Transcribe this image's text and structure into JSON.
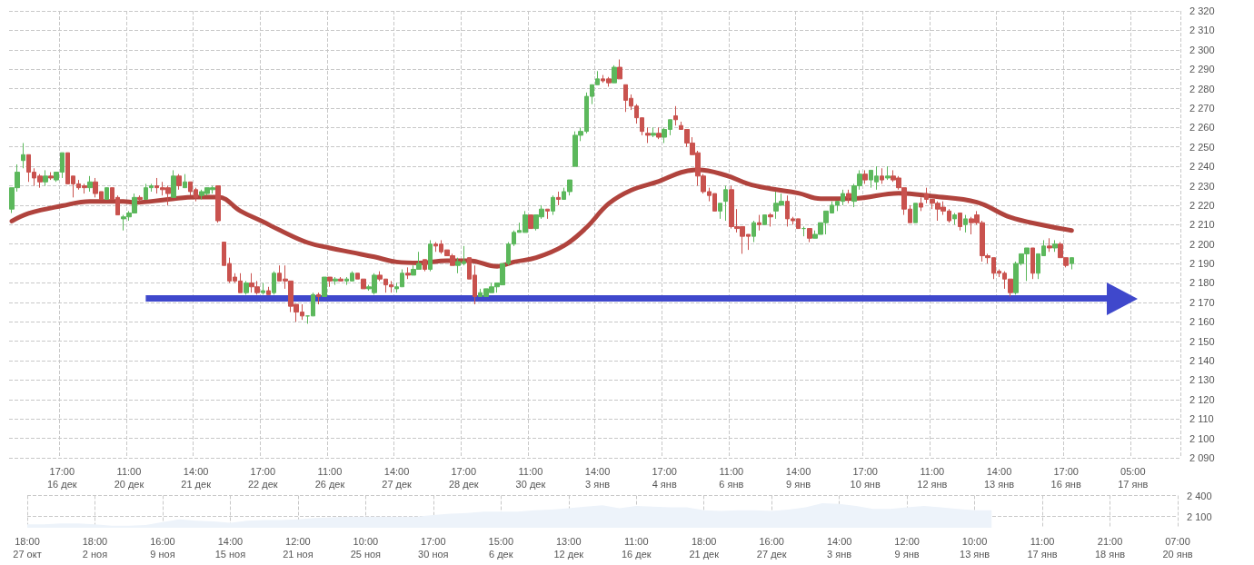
{
  "chart_data": [
    {
      "type": "candlestick",
      "categories": [
        null,
        null,
        null,
        null,
        null,
        null,
        null,
        null,
        null,
        "17:00\n16 дек",
        null,
        null,
        null,
        null,
        null,
        null,
        null,
        null,
        null,
        null,
        null,
        "11:00\n20 дек",
        null,
        null,
        null,
        null,
        null,
        null,
        null,
        null,
        null,
        null,
        null,
        "14:00\n21 дек",
        null,
        null,
        null,
        null,
        null,
        null,
        null,
        null,
        null,
        null,
        null,
        "17:00\n22 дек",
        null,
        null,
        null,
        null,
        null,
        null,
        null,
        null,
        null,
        null,
        null,
        "11:00\n26 дек",
        null,
        null,
        null,
        null,
        null,
        null,
        null,
        null,
        null,
        null,
        null,
        "14:00\n27 дек",
        null,
        null,
        null,
        null,
        null,
        null,
        null,
        null,
        null,
        null,
        null,
        "17:00\n28 дек",
        null,
        null,
        null,
        null,
        null,
        null,
        null,
        null,
        null,
        null,
        null,
        "11:00\n30 дек",
        null,
        null,
        null,
        null,
        null,
        null,
        null,
        null,
        null,
        null,
        null,
        "14:00\n3 янв",
        null,
        null,
        null,
        null,
        null,
        null,
        null,
        null,
        null,
        null,
        null,
        "17:00\n4 янв",
        null,
        null,
        null,
        null,
        null,
        null,
        null,
        null,
        null,
        null,
        null,
        "11:00\n6 янв",
        null,
        null,
        null,
        null,
        null,
        null,
        null,
        null,
        null,
        null,
        null,
        "14:00\n9 янв",
        null,
        null,
        null,
        null,
        null,
        null,
        null,
        null,
        null,
        null,
        null,
        "17:00\n10 янв",
        null,
        null,
        null,
        null,
        null,
        null,
        null,
        null,
        null,
        null,
        null,
        "11:00\n12 янв",
        null,
        null,
        null,
        null,
        null,
        null,
        null,
        null,
        null,
        null,
        null,
        "14:00\n13 янв",
        null,
        null,
        null,
        null,
        null,
        null,
        null,
        null,
        null,
        null,
        null,
        "17:00\n16 янв",
        null,
        null,
        null,
        null,
        null,
        null,
        null,
        null,
        null,
        null,
        null,
        "05:00\n17 янв",
        null,
        null,
        null,
        null,
        null,
        null,
        null,
        null
      ],
      "ohlc": [
        [
          2218,
          2229,
          2216,
          2229
        ],
        [
          2229,
          2241,
          2227,
          2237
        ],
        [
          2243,
          2252,
          2239,
          2246
        ],
        [
          2246,
          2246,
          2232,
          2237
        ],
        [
          2237,
          2239,
          2230,
          2234
        ],
        [
          2235,
          2236,
          2229,
          2232
        ],
        [
          2232,
          2238,
          2230,
          2235
        ],
        [
          2235,
          2237,
          2233,
          2234
        ],
        [
          2233,
          2237,
          2232,
          2237
        ],
        [
          2237,
          2247,
          2234,
          2247
        ],
        [
          2247,
          2247,
          2231,
          2231
        ],
        [
          2235,
          2235,
          2224,
          2231
        ],
        [
          2231,
          2233,
          2228,
          2229
        ],
        [
          2230,
          2231,
          2226,
          2229
        ],
        [
          2229,
          2235,
          2227,
          2232
        ],
        [
          2232,
          2234,
          2224,
          2226
        ],
        [
          2227,
          2227,
          2223,
          2223
        ],
        [
          2223,
          2229,
          2223,
          2229
        ],
        [
          2229,
          2229,
          2223,
          2223
        ],
        [
          2224,
          2225,
          2215,
          2215
        ],
        [
          2213,
          2215,
          2207,
          2214
        ],
        [
          2214,
          2217,
          2212,
          2216
        ],
        [
          2216,
          2226,
          2216,
          2224
        ],
        [
          2224,
          2225,
          2222,
          2223
        ],
        [
          2223,
          2231,
          2223,
          2229
        ],
        [
          2229,
          2231,
          2227,
          2230
        ],
        [
          2230,
          2234,
          2226,
          2229
        ],
        [
          2229,
          2232,
          2225,
          2228
        ],
        [
          2229,
          2230,
          2220,
          2226
        ],
        [
          2224,
          2238,
          2224,
          2235
        ],
        [
          2235,
          2236,
          2228,
          2230
        ],
        [
          2229,
          2236,
          2229,
          2232
        ],
        [
          2232,
          2232,
          2225,
          2227
        ],
        [
          2228,
          2229,
          2222,
          2224
        ],
        [
          2225,
          2228,
          2223,
          2227
        ],
        [
          2226,
          2229,
          2225,
          2229
        ],
        [
          2228,
          2230,
          2226,
          2229
        ],
        [
          2230,
          2230,
          2211,
          2212
        ],
        [
          2201,
          2201,
          2189,
          2189
        ],
        [
          2190,
          2193,
          2180,
          2181
        ],
        [
          2183,
          2185,
          2180,
          2181
        ],
        [
          2181,
          2185,
          2175,
          2175
        ],
        [
          2175,
          2181,
          2174,
          2180
        ],
        [
          2180,
          2185,
          2175,
          2178
        ],
        [
          2178,
          2181,
          2174,
          2175
        ],
        [
          2175,
          2180,
          2174,
          2176
        ],
        [
          2176,
          2178,
          2174,
          2174
        ],
        [
          2175,
          2186,
          2174,
          2185
        ],
        [
          2185,
          2189,
          2181,
          2181
        ],
        [
          2182,
          2189,
          2177,
          2181
        ],
        [
          2181,
          2181,
          2165,
          2168
        ],
        [
          2169,
          2169,
          2160,
          2165
        ],
        [
          2165,
          2169,
          2161,
          2163
        ],
        [
          2163,
          2163,
          2159,
          2163
        ],
        [
          2163,
          2175,
          2163,
          2174
        ],
        [
          2174,
          2175,
          2169,
          2173
        ],
        [
          2173,
          2183,
          2173,
          2183
        ],
        [
          2183,
          2183,
          2178,
          2181
        ],
        [
          2181,
          2183,
          2179,
          2182
        ],
        [
          2182,
          2183,
          2181,
          2181
        ],
        [
          2181,
          2183,
          2179,
          2182
        ],
        [
          2181,
          2186,
          2181,
          2185
        ],
        [
          2185,
          2185,
          2182,
          2182
        ],
        [
          2182,
          2182,
          2177,
          2177
        ],
        [
          2177,
          2179,
          2176,
          2178
        ],
        [
          2175,
          2185,
          2174,
          2184
        ],
        [
          2184,
          2186,
          2181,
          2182
        ],
        [
          2182,
          2182,
          2175,
          2179
        ],
        [
          2179,
          2181,
          2175,
          2178
        ],
        [
          2177,
          2180,
          2175,
          2178
        ],
        [
          2178,
          2187,
          2178,
          2185
        ],
        [
          2185,
          2188,
          2182,
          2184
        ],
        [
          2184,
          2189,
          2184,
          2187
        ],
        [
          2187,
          2196,
          2187,
          2190
        ],
        [
          2192,
          2192,
          2186,
          2187
        ],
        [
          2187,
          2202,
          2186,
          2200
        ],
        [
          2200,
          2201,
          2196,
          2199
        ],
        [
          2200,
          2202,
          2195,
          2196
        ],
        [
          2197,
          2197,
          2194,
          2194
        ],
        [
          2194,
          2195,
          2189,
          2189
        ],
        [
          2189,
          2193,
          2185,
          2191
        ],
        [
          2190,
          2199,
          2189,
          2191
        ],
        [
          2193,
          2193,
          2182,
          2182
        ],
        [
          2184,
          2189,
          2169,
          2173
        ],
        [
          2173,
          2177,
          2173,
          2175
        ],
        [
          2173,
          2177,
          2173,
          2177
        ],
        [
          2175,
          2180,
          2175,
          2178
        ],
        [
          2178,
          2180,
          2175,
          2180
        ],
        [
          2179,
          2190,
          2179,
          2190
        ],
        [
          2190,
          2201,
          2189,
          2200
        ],
        [
          2200,
          2207,
          2199,
          2206
        ],
        [
          2206,
          2211,
          2206,
          2207
        ],
        [
          2206,
          2217,
          2206,
          2215
        ],
        [
          2215,
          2215,
          2208,
          2208
        ],
        [
          2208,
          2215,
          2207,
          2215
        ],
        [
          2214,
          2220,
          2213,
          2218
        ],
        [
          2218,
          2218,
          2213,
          2217
        ],
        [
          2217,
          2225,
          2215,
          2224
        ],
        [
          2224,
          2227,
          2220,
          2223
        ],
        [
          2223,
          2229,
          2223,
          2227
        ],
        [
          2227,
          2233,
          2225,
          2233
        ],
        [
          2240,
          2258,
          2240,
          2256
        ],
        [
          2256,
          2260,
          2253,
          2258
        ],
        [
          2258,
          2278,
          2257,
          2276
        ],
        [
          2276,
          2282,
          2272,
          2282
        ],
        [
          2282,
          2289,
          2282,
          2285
        ],
        [
          2285,
          2287,
          2283,
          2284
        ],
        [
          2285,
          2286,
          2281,
          2283
        ],
        [
          2283,
          2292,
          2283,
          2291
        ],
        [
          2291,
          2295,
          2285,
          2285
        ],
        [
          2282,
          2282,
          2268,
          2274
        ],
        [
          2275,
          2277,
          2269,
          2271
        ],
        [
          2271,
          2272,
          2262,
          2265
        ],
        [
          2265,
          2265,
          2256,
          2258
        ],
        [
          2257,
          2260,
          2252,
          2256
        ],
        [
          2256,
          2260,
          2255,
          2257
        ],
        [
          2257,
          2260,
          2254,
          2255
        ],
        [
          2255,
          2260,
          2252,
          2259
        ],
        [
          2259,
          2264,
          2256,
          2264
        ],
        [
          2266,
          2271,
          2261,
          2264
        ],
        [
          2261,
          2263,
          2259,
          2259
        ],
        [
          2259,
          2259,
          2250,
          2252
        ],
        [
          2252,
          2255,
          2246,
          2246
        ],
        [
          2247,
          2248,
          2230,
          2235
        ],
        [
          2235,
          2236,
          2226,
          2227
        ],
        [
          2227,
          2229,
          2222,
          2225
        ],
        [
          2226,
          2226,
          2217,
          2217
        ],
        [
          2217,
          2221,
          2213,
          2221
        ],
        [
          2222,
          2230,
          2212,
          2228
        ],
        [
          2228,
          2230,
          2208,
          2209
        ],
        [
          2209,
          2218,
          2206,
          2208
        ],
        [
          2209,
          2209,
          2195,
          2204
        ],
        [
          2205,
          2205,
          2197,
          2204
        ],
        [
          2204,
          2212,
          2201,
          2211
        ],
        [
          2211,
          2215,
          2207,
          2210
        ],
        [
          2210,
          2215,
          2210,
          2215
        ],
        [
          2215,
          2216,
          2209,
          2214
        ],
        [
          2217,
          2227,
          2213,
          2221
        ],
        [
          2220,
          2226,
          2220,
          2222
        ],
        [
          2222,
          2225,
          2209,
          2213
        ],
        [
          2213,
          2214,
          2210,
          2212
        ],
        [
          2213,
          2213,
          2208,
          2208
        ],
        [
          2208,
          2209,
          2204,
          2208
        ],
        [
          2208,
          2208,
          2201,
          2203
        ],
        [
          2203,
          2207,
          2203,
          2205
        ],
        [
          2205,
          2211,
          2205,
          2211
        ],
        [
          2211,
          2217,
          2205,
          2217
        ],
        [
          2216,
          2222,
          2216,
          2220
        ],
        [
          2220,
          2222,
          2217,
          2222
        ],
        [
          2222,
          2228,
          2220,
          2226
        ],
        [
          2226,
          2228,
          2221,
          2224
        ],
        [
          2222,
          2231,
          2219,
          2230
        ],
        [
          2230,
          2238,
          2228,
          2236
        ],
        [
          2236,
          2238,
          2231,
          2233
        ],
        [
          2233,
          2238,
          2229,
          2238
        ],
        [
          2232,
          2240,
          2228,
          2235
        ],
        [
          2235,
          2239,
          2231,
          2233
        ],
        [
          2234,
          2240,
          2233,
          2235
        ],
        [
          2235,
          2238,
          2232,
          2233
        ],
        [
          2234,
          2235,
          2228,
          2229
        ],
        [
          2229,
          2229,
          2215,
          2218
        ],
        [
          2218,
          2220,
          2211,
          2211
        ],
        [
          2211,
          2221,
          2211,
          2221
        ],
        [
          2221,
          2224,
          2217,
          2219
        ],
        [
          2226,
          2229,
          2221,
          2223
        ],
        [
          2223,
          2223,
          2218,
          2221
        ],
        [
          2221,
          2222,
          2212,
          2218
        ],
        [
          2219,
          2222,
          2215,
          2217
        ],
        [
          2217,
          2218,
          2211,
          2212
        ],
        [
          2213,
          2216,
          2210,
          2215
        ],
        [
          2216,
          2216,
          2207,
          2209
        ],
        [
          2210,
          2215,
          2206,
          2213
        ],
        [
          2213,
          2214,
          2205,
          2211
        ],
        [
          2215,
          2217,
          2210,
          2211
        ],
        [
          2211,
          2212,
          2191,
          2194
        ],
        [
          2194,
          2195,
          2190,
          2193
        ],
        [
          2193,
          2193,
          2182,
          2185
        ],
        [
          2186,
          2187,
          2183,
          2185
        ],
        [
          2185,
          2186,
          2177,
          2182
        ],
        [
          2182,
          2182,
          2173,
          2175
        ],
        [
          2175,
          2191,
          2174,
          2190
        ],
        [
          2190,
          2195,
          2189,
          2195
        ],
        [
          2195,
          2198,
          2181,
          2198
        ],
        [
          2198,
          2198,
          2182,
          2185
        ],
        [
          2185,
          2195,
          2182,
          2195
        ],
        [
          2194,
          2202,
          2194,
          2199
        ],
        [
          2199,
          2203,
          2196,
          2198
        ],
        [
          2198,
          2202,
          2196,
          2200
        ],
        [
          2200,
          2201,
          2193,
          2193
        ],
        [
          2193,
          2193,
          2188,
          2189
        ],
        [
          2190,
          2193,
          2187,
          2193
        ],
        null,
        null,
        null,
        null,
        null,
        null,
        null,
        null,
        null,
        null,
        null,
        null,
        null,
        null,
        null,
        null,
        null,
        null,
        null
      ],
      "series": [
        {
          "type": "line",
          "color": "#b0433d",
          "values": [
            2211.8,
            null,
            null,
            2215.8,
            null,
            null,
            null,
            null,
            null,
            2219.7,
            null,
            null,
            null,
            null,
            2222,
            null,
            null,
            null,
            null,
            null,
            2222,
            null,
            2221.4,
            null,
            null,
            null,
            null,
            null,
            2223,
            null,
            null,
            null,
            null,
            2224.2,
            null,
            null,
            null,
            2224.2,
            null,
            null,
            null,
            2217,
            null,
            null,
            null,
            2211.5,
            null,
            null,
            2207.2,
            null,
            null,
            null,
            null,
            2200.8,
            null,
            null,
            null,
            2198,
            null,
            null,
            null,
            2195.7,
            null,
            null,
            null,
            2193.4,
            null,
            null,
            null,
            2190.8,
            null,
            null,
            null,
            2190.3,
            null,
            null,
            null,
            null,
            2191.5,
            null,
            null,
            null,
            2191.5,
            null,
            null,
            null,
            null,
            2188.5,
            null,
            null,
            2190.8,
            null,
            null,
            null,
            2193,
            null,
            null,
            null,
            null,
            2199.2,
            null,
            null,
            null,
            2208.5,
            null,
            null,
            null,
            2220.8,
            null,
            null,
            null,
            2227.7,
            null,
            null,
            null,
            null,
            2232.3,
            null,
            null,
            null,
            2236.9,
            null,
            null,
            2238.2,
            null,
            null,
            null,
            null,
            2235.4,
            null,
            null,
            null,
            2231,
            null,
            null,
            null,
            2228.5,
            null,
            null,
            null,
            null,
            2226.2,
            null,
            null,
            null,
            2223.4,
            null,
            null,
            null,
            null,
            null,
            2223.5,
            null,
            null,
            null,
            null,
            null,
            null,
            null,
            2226.2,
            null,
            null,
            null,
            null,
            null,
            2224.6,
            null,
            null,
            null,
            null,
            null,
            null,
            null,
            2221.5,
            null,
            null,
            null,
            null,
            null,
            2213.8,
            null,
            null,
            null,
            null,
            null,
            2209.7,
            null,
            null,
            null,
            null,
            2207,
            null,
            null,
            null,
            null,
            null,
            null,
            null,
            null,
            null,
            null,
            null,
            null,
            null,
            null,
            null,
            null,
            null,
            null,
            null
          ]
        }
      ],
      "ylim": [
        2090,
        2320
      ],
      "yticks": [
        {
          "value": 2090,
          "label": "2 090"
        },
        {
          "value": 2100,
          "label": "2 100"
        },
        {
          "value": 2110,
          "label": "2 110"
        },
        {
          "value": 2120,
          "label": "2 120"
        },
        {
          "value": 2130,
          "label": "2 130"
        },
        {
          "value": 2140,
          "label": "2 140"
        },
        {
          "value": 2150,
          "label": "2 150"
        },
        {
          "value": 2160,
          "label": "2 160"
        },
        {
          "value": 2170,
          "label": "2 170"
        },
        {
          "value": 2180,
          "label": "2 180"
        },
        {
          "value": 2190,
          "label": "2 190"
        },
        {
          "value": 2200,
          "label": "2 200"
        },
        {
          "value": 2210,
          "label": "2 210"
        },
        {
          "value": 2220,
          "label": "2 220"
        },
        {
          "value": 2230,
          "label": "2 230"
        },
        {
          "value": 2240,
          "label": "2 240"
        },
        {
          "value": 2250,
          "label": "2 250"
        },
        {
          "value": 2260,
          "label": "2 260"
        },
        {
          "value": 2270,
          "label": "2 270"
        },
        {
          "value": 2280,
          "label": "2 280"
        },
        {
          "value": 2290,
          "label": "2 290"
        },
        {
          "value": 2300,
          "label": "2 300"
        },
        {
          "value": 2310,
          "label": "2 310"
        },
        {
          "value": 2320,
          "label": "2 320"
        }
      ],
      "ref_lines": [
        {
          "axis": "y",
          "value": 2172,
          "color": "#3f48cc"
        }
      ],
      "grid": true
    },
    {
      "type": "area",
      "color": "#edf3fa",
      "categories": [
        "18:00\n27 окт",
        null,
        null,
        null,
        "18:00\n2 ноя",
        null,
        null,
        null,
        "16:00\n9 ноя",
        null,
        null,
        null,
        "14:00\n15 ноя",
        null,
        null,
        null,
        "12:00\n21 ноя",
        null,
        null,
        null,
        "10:00\n25 ноя",
        null,
        null,
        null,
        "17:00\n30 ноя",
        null,
        null,
        null,
        "15:00\n6 дек",
        null,
        null,
        null,
        "13:00\n12 дек",
        null,
        null,
        null,
        "11:00\n16 дек",
        null,
        null,
        null,
        "18:00\n21 дек",
        null,
        null,
        null,
        "16:00\n27 дек",
        null,
        null,
        null,
        "14:00\n3 янв",
        null,
        null,
        null,
        "12:00\n9 янв",
        null,
        null,
        null,
        "10:00\n13 янв",
        null,
        null,
        null,
        "11:00\n17 янв",
        null,
        null,
        null,
        "21:00\n18 янв",
        null,
        null,
        null,
        "07:00\n20 янв"
      ],
      "values": [
        1990,
        1990,
        2000,
        2000,
        1990,
        1970,
        1970,
        1980,
        2020,
        2060,
        2040,
        2030,
        2010,
        2040,
        2050,
        2050,
        2060,
        2080,
        2090,
        2100,
        2100,
        2100,
        2100,
        2100,
        2120,
        2140,
        2150,
        2170,
        2170,
        2170,
        2190,
        2200,
        2220,
        2240,
        2260,
        2220,
        2250,
        2240,
        2230,
        2230,
        2190,
        2180,
        2190,
        2190,
        2180,
        2200,
        2230,
        2290,
        2280,
        2250,
        2210,
        2210,
        2230,
        2250,
        2230,
        2210,
        2190,
        2190,
        null,
        null,
        null,
        null,
        null,
        null,
        null,
        null,
        null,
        null,
        null
      ],
      "ylim": [
        1940,
        2400
      ],
      "yticks": [
        {
          "value": 2100,
          "label": "2 100"
        },
        {
          "value": 2400,
          "label": "2 400"
        }
      ],
      "grid": true
    }
  ]
}
